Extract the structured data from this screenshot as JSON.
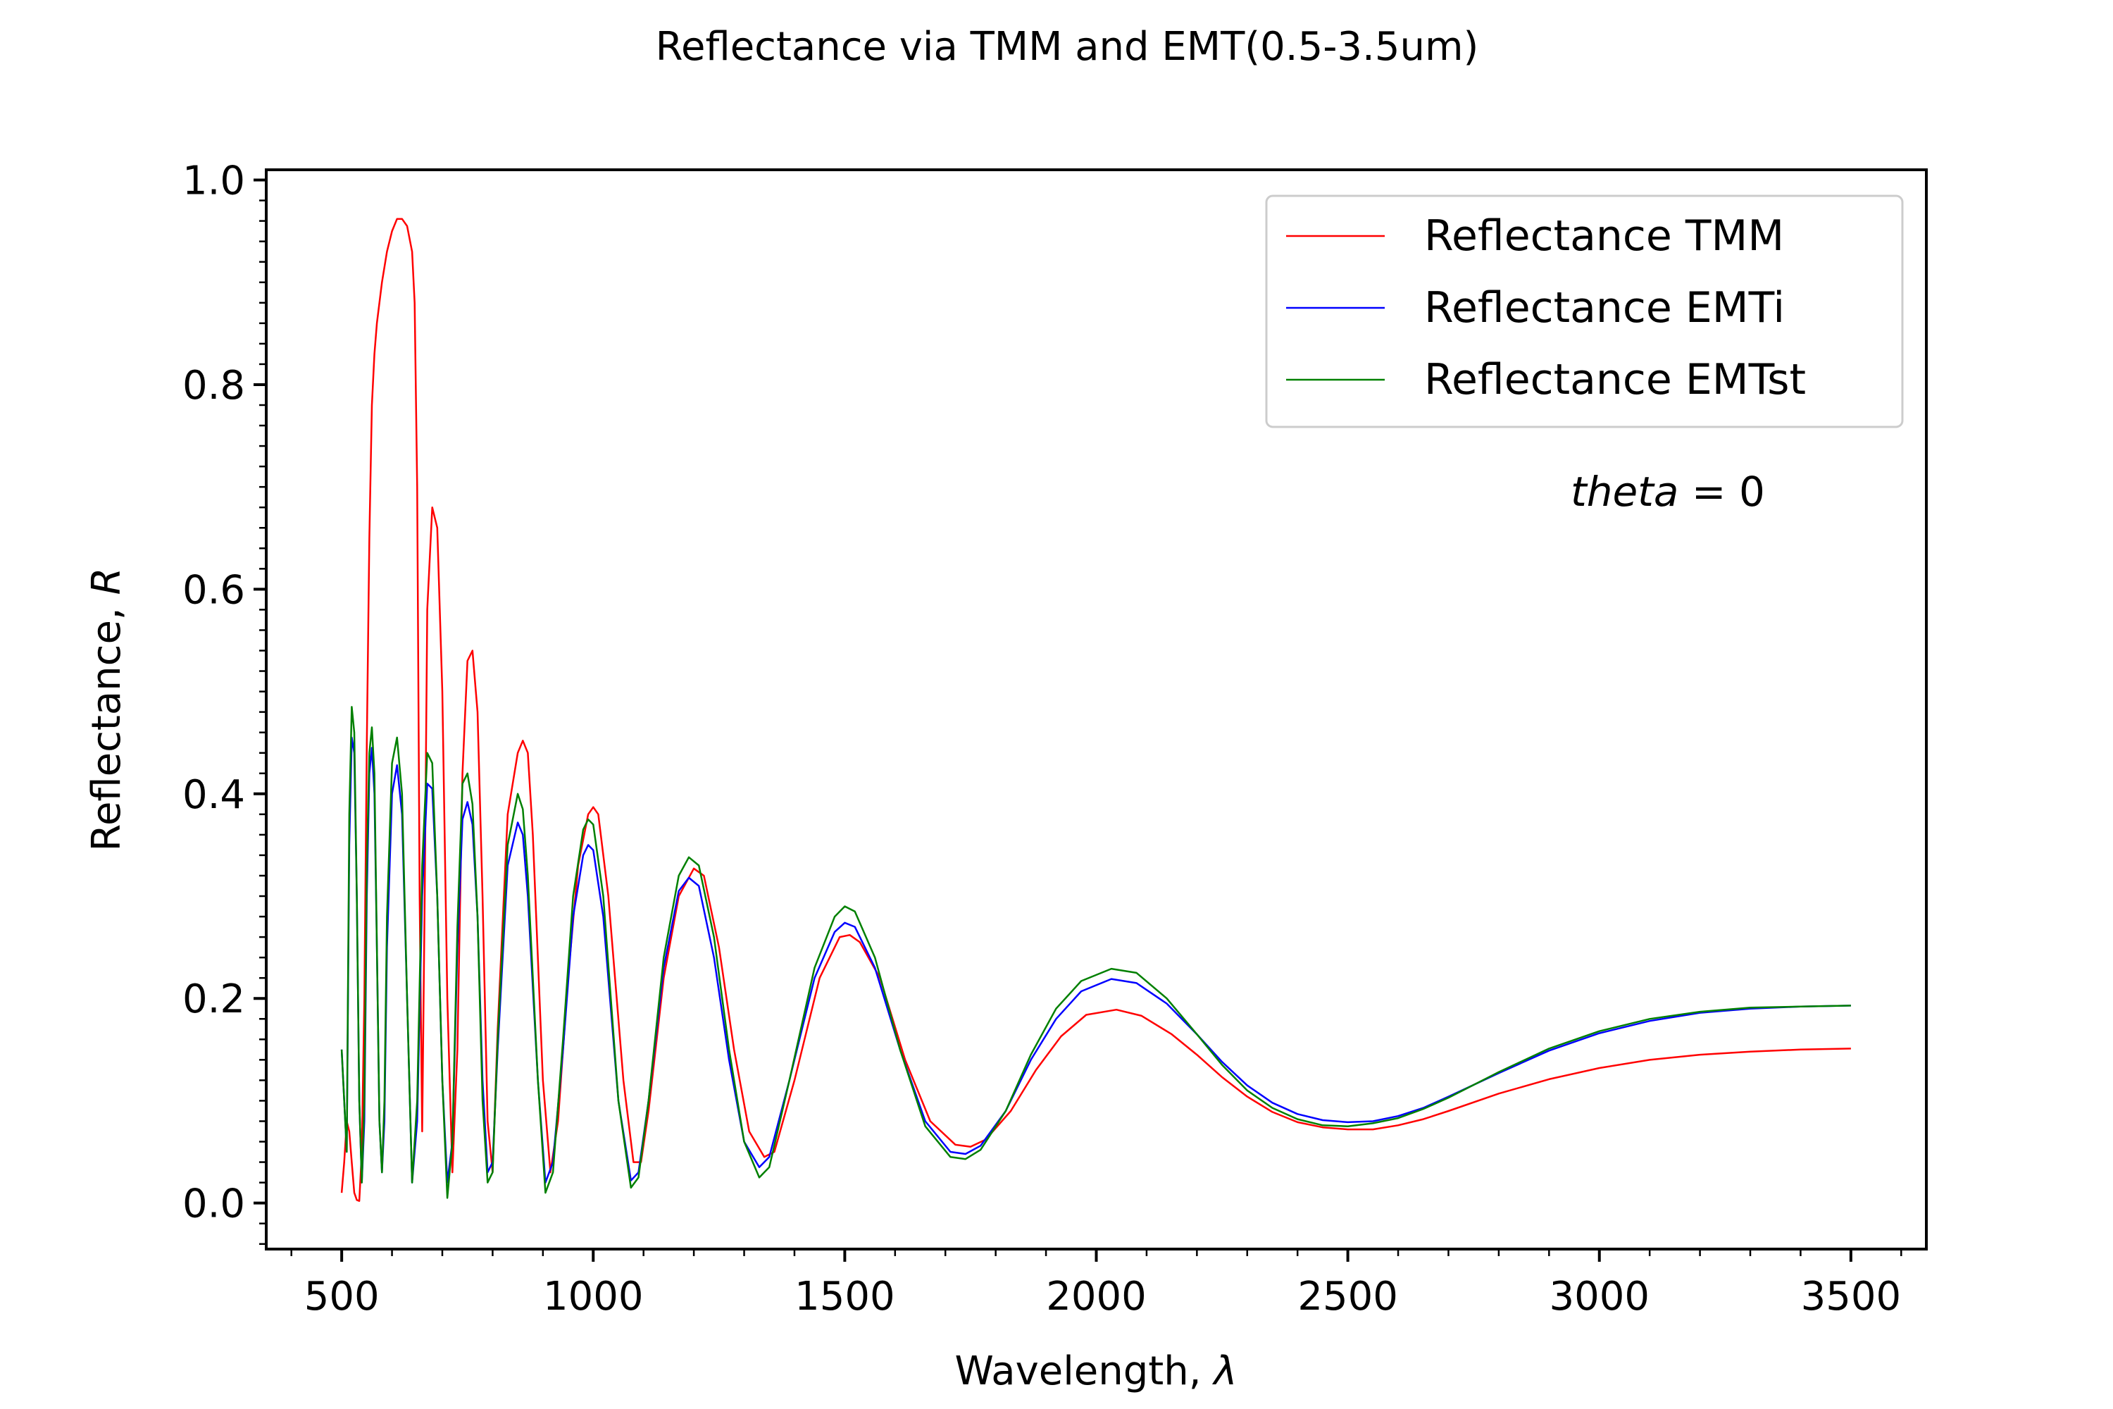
{
  "chart_data": {
    "type": "line",
    "title": "Reflectance via TMM and EMT(0.5-3.5um)",
    "xlabel": "Wavelength, ",
    "xlabel_symbol": "λ",
    "ylabel": "Reflectance, ",
    "ylabel_symbol": "R",
    "xlim": [
      350,
      3650
    ],
    "ylim": [
      -0.045,
      1.01
    ],
    "xticks": [
      500,
      1000,
      1500,
      2000,
      2500,
      3000,
      3500
    ],
    "xtick_labels": [
      "500",
      "1000",
      "1500",
      "2000",
      "2500",
      "3000",
      "3500"
    ],
    "yticks": [
      0.0,
      0.2,
      0.4,
      0.6,
      0.8,
      1.0
    ],
    "ytick_labels": [
      "0.0",
      "0.2",
      "0.4",
      "0.6",
      "0.8",
      "1.0"
    ],
    "minor_ticks": true,
    "grid": false,
    "legend_position": "top-right",
    "annotation": {
      "italic": "theta",
      "rest": " = 0"
    },
    "series": [
      {
        "name": "Reflectance TMM",
        "color": "#ff0000",
        "points": [
          [
            500,
            0.01
          ],
          [
            505,
            0.04
          ],
          [
            510,
            0.08
          ],
          [
            515,
            0.07
          ],
          [
            520,
            0.04
          ],
          [
            525,
            0.01
          ],
          [
            530,
            0.003
          ],
          [
            535,
            0.002
          ],
          [
            540,
            0.05
          ],
          [
            545,
            0.2
          ],
          [
            550,
            0.45
          ],
          [
            555,
            0.65
          ],
          [
            560,
            0.78
          ],
          [
            565,
            0.83
          ],
          [
            570,
            0.86
          ],
          [
            580,
            0.9
          ],
          [
            590,
            0.93
          ],
          [
            600,
            0.95
          ],
          [
            610,
            0.962
          ],
          [
            620,
            0.962
          ],
          [
            630,
            0.955
          ],
          [
            640,
            0.93
          ],
          [
            645,
            0.88
          ],
          [
            650,
            0.7
          ],
          [
            655,
            0.3
          ],
          [
            660,
            0.07
          ],
          [
            665,
            0.3
          ],
          [
            670,
            0.58
          ],
          [
            680,
            0.68
          ],
          [
            690,
            0.66
          ],
          [
            700,
            0.5
          ],
          [
            710,
            0.2
          ],
          [
            720,
            0.03
          ],
          [
            730,
            0.15
          ],
          [
            740,
            0.42
          ],
          [
            750,
            0.53
          ],
          [
            760,
            0.54
          ],
          [
            770,
            0.48
          ],
          [
            780,
            0.3
          ],
          [
            790,
            0.08
          ],
          [
            800,
            0.03
          ],
          [
            810,
            0.17
          ],
          [
            830,
            0.38
          ],
          [
            850,
            0.44
          ],
          [
            860,
            0.452
          ],
          [
            870,
            0.44
          ],
          [
            880,
            0.36
          ],
          [
            900,
            0.12
          ],
          [
            915,
            0.03
          ],
          [
            930,
            0.08
          ],
          [
            950,
            0.22
          ],
          [
            970,
            0.33
          ],
          [
            990,
            0.38
          ],
          [
            1000,
            0.387
          ],
          [
            1010,
            0.38
          ],
          [
            1030,
            0.3
          ],
          [
            1060,
            0.12
          ],
          [
            1080,
            0.04
          ],
          [
            1095,
            0.04
          ],
          [
            1110,
            0.09
          ],
          [
            1140,
            0.22
          ],
          [
            1170,
            0.3
          ],
          [
            1200,
            0.327
          ],
          [
            1220,
            0.32
          ],
          [
            1250,
            0.25
          ],
          [
            1280,
            0.15
          ],
          [
            1310,
            0.07
          ],
          [
            1340,
            0.045
          ],
          [
            1360,
            0.05
          ],
          [
            1400,
            0.12
          ],
          [
            1450,
            0.22
          ],
          [
            1490,
            0.26
          ],
          [
            1510,
            0.262
          ],
          [
            1530,
            0.255
          ],
          [
            1570,
            0.22
          ],
          [
            1620,
            0.14
          ],
          [
            1670,
            0.08
          ],
          [
            1720,
            0.057
          ],
          [
            1750,
            0.055
          ],
          [
            1780,
            0.062
          ],
          [
            1830,
            0.09
          ],
          [
            1880,
            0.13
          ],
          [
            1930,
            0.163
          ],
          [
            1980,
            0.184
          ],
          [
            2040,
            0.189
          ],
          [
            2090,
            0.183
          ],
          [
            2150,
            0.165
          ],
          [
            2200,
            0.145
          ],
          [
            2250,
            0.123
          ],
          [
            2300,
            0.104
          ],
          [
            2350,
            0.089
          ],
          [
            2400,
            0.079
          ],
          [
            2450,
            0.074
          ],
          [
            2500,
            0.072
          ],
          [
            2550,
            0.072
          ],
          [
            2600,
            0.076
          ],
          [
            2650,
            0.082
          ],
          [
            2700,
            0.09
          ],
          [
            2800,
            0.107
          ],
          [
            2900,
            0.121
          ],
          [
            3000,
            0.132
          ],
          [
            3100,
            0.14
          ],
          [
            3200,
            0.145
          ],
          [
            3300,
            0.148
          ],
          [
            3400,
            0.15
          ],
          [
            3500,
            0.151
          ]
        ]
      },
      {
        "name": "Reflectance EMTi",
        "color": "#0000ff",
        "points": [
          [
            500,
            0.15
          ],
          [
            505,
            0.1
          ],
          [
            510,
            0.05
          ],
          [
            515,
            0.35
          ],
          [
            520,
            0.455
          ],
          [
            525,
            0.44
          ],
          [
            530,
            0.3
          ],
          [
            535,
            0.1
          ],
          [
            540,
            0.02
          ],
          [
            545,
            0.08
          ],
          [
            550,
            0.3
          ],
          [
            555,
            0.42
          ],
          [
            560,
            0.445
          ],
          [
            565,
            0.4
          ],
          [
            570,
            0.25
          ],
          [
            575,
            0.08
          ],
          [
            580,
            0.03
          ],
          [
            585,
            0.08
          ],
          [
            590,
            0.25
          ],
          [
            600,
            0.4
          ],
          [
            610,
            0.428
          ],
          [
            620,
            0.38
          ],
          [
            630,
            0.2
          ],
          [
            640,
            0.02
          ],
          [
            650,
            0.08
          ],
          [
            660,
            0.3
          ],
          [
            670,
            0.41
          ],
          [
            680,
            0.405
          ],
          [
            690,
            0.3
          ],
          [
            700,
            0.12
          ],
          [
            710,
            0.02
          ],
          [
            720,
            0.06
          ],
          [
            730,
            0.25
          ],
          [
            740,
            0.375
          ],
          [
            750,
            0.392
          ],
          [
            760,
            0.37
          ],
          [
            770,
            0.28
          ],
          [
            780,
            0.12
          ],
          [
            790,
            0.03
          ],
          [
            800,
            0.04
          ],
          [
            810,
            0.15
          ],
          [
            830,
            0.33
          ],
          [
            850,
            0.372
          ],
          [
            860,
            0.36
          ],
          [
            870,
            0.3
          ],
          [
            890,
            0.12
          ],
          [
            905,
            0.02
          ],
          [
            920,
            0.04
          ],
          [
            940,
            0.15
          ],
          [
            960,
            0.28
          ],
          [
            980,
            0.34
          ],
          [
            990,
            0.35
          ],
          [
            1000,
            0.345
          ],
          [
            1020,
            0.28
          ],
          [
            1050,
            0.1
          ],
          [
            1075,
            0.022
          ],
          [
            1090,
            0.03
          ],
          [
            1110,
            0.1
          ],
          [
            1140,
            0.23
          ],
          [
            1170,
            0.305
          ],
          [
            1190,
            0.318
          ],
          [
            1210,
            0.31
          ],
          [
            1240,
            0.24
          ],
          [
            1270,
            0.14
          ],
          [
            1300,
            0.06
          ],
          [
            1330,
            0.035
          ],
          [
            1350,
            0.045
          ],
          [
            1390,
            0.12
          ],
          [
            1440,
            0.22
          ],
          [
            1480,
            0.265
          ],
          [
            1500,
            0.274
          ],
          [
            1520,
            0.27
          ],
          [
            1560,
            0.23
          ],
          [
            1610,
            0.15
          ],
          [
            1660,
            0.08
          ],
          [
            1710,
            0.05
          ],
          [
            1740,
            0.048
          ],
          [
            1770,
            0.056
          ],
          [
            1820,
            0.09
          ],
          [
            1870,
            0.14
          ],
          [
            1920,
            0.18
          ],
          [
            1970,
            0.207
          ],
          [
            2030,
            0.219
          ],
          [
            2080,
            0.215
          ],
          [
            2140,
            0.195
          ],
          [
            2200,
            0.165
          ],
          [
            2250,
            0.138
          ],
          [
            2300,
            0.115
          ],
          [
            2350,
            0.098
          ],
          [
            2400,
            0.087
          ],
          [
            2450,
            0.081
          ],
          [
            2500,
            0.079
          ],
          [
            2550,
            0.08
          ],
          [
            2600,
            0.085
          ],
          [
            2650,
            0.093
          ],
          [
            2700,
            0.104
          ],
          [
            2800,
            0.127
          ],
          [
            2900,
            0.149
          ],
          [
            3000,
            0.166
          ],
          [
            3100,
            0.178
          ],
          [
            3200,
            0.186
          ],
          [
            3300,
            0.19
          ],
          [
            3400,
            0.192
          ],
          [
            3500,
            0.193
          ]
        ]
      },
      {
        "name": "Reflectance EMTst",
        "color": "#008000",
        "points": [
          [
            500,
            0.15
          ],
          [
            505,
            0.1
          ],
          [
            510,
            0.05
          ],
          [
            515,
            0.38
          ],
          [
            520,
            0.485
          ],
          [
            525,
            0.46
          ],
          [
            530,
            0.3
          ],
          [
            535,
            0.1
          ],
          [
            540,
            0.02
          ],
          [
            545,
            0.1
          ],
          [
            550,
            0.33
          ],
          [
            555,
            0.44
          ],
          [
            560,
            0.465
          ],
          [
            565,
            0.42
          ],
          [
            570,
            0.25
          ],
          [
            575,
            0.08
          ],
          [
            580,
            0.03
          ],
          [
            585,
            0.1
          ],
          [
            590,
            0.28
          ],
          [
            600,
            0.43
          ],
          [
            610,
            0.455
          ],
          [
            620,
            0.4
          ],
          [
            630,
            0.2
          ],
          [
            640,
            0.02
          ],
          [
            650,
            0.1
          ],
          [
            660,
            0.33
          ],
          [
            670,
            0.44
          ],
          [
            680,
            0.43
          ],
          [
            690,
            0.3
          ],
          [
            700,
            0.12
          ],
          [
            710,
            0.005
          ],
          [
            720,
            0.06
          ],
          [
            730,
            0.27
          ],
          [
            740,
            0.41
          ],
          [
            750,
            0.42
          ],
          [
            760,
            0.39
          ],
          [
            770,
            0.28
          ],
          [
            780,
            0.1
          ],
          [
            790,
            0.02
          ],
          [
            800,
            0.03
          ],
          [
            810,
            0.16
          ],
          [
            830,
            0.35
          ],
          [
            850,
            0.4
          ],
          [
            860,
            0.385
          ],
          [
            870,
            0.32
          ],
          [
            890,
            0.12
          ],
          [
            905,
            0.01
          ],
          [
            920,
            0.03
          ],
          [
            940,
            0.16
          ],
          [
            960,
            0.3
          ],
          [
            980,
            0.365
          ],
          [
            990,
            0.375
          ],
          [
            1000,
            0.37
          ],
          [
            1020,
            0.3
          ],
          [
            1050,
            0.1
          ],
          [
            1075,
            0.015
          ],
          [
            1090,
            0.025
          ],
          [
            1110,
            0.1
          ],
          [
            1140,
            0.24
          ],
          [
            1170,
            0.32
          ],
          [
            1190,
            0.338
          ],
          [
            1210,
            0.33
          ],
          [
            1240,
            0.26
          ],
          [
            1270,
            0.15
          ],
          [
            1300,
            0.06
          ],
          [
            1330,
            0.025
          ],
          [
            1350,
            0.035
          ],
          [
            1390,
            0.12
          ],
          [
            1440,
            0.23
          ],
          [
            1480,
            0.28
          ],
          [
            1500,
            0.29
          ],
          [
            1520,
            0.285
          ],
          [
            1560,
            0.24
          ],
          [
            1610,
            0.15
          ],
          [
            1660,
            0.075
          ],
          [
            1710,
            0.045
          ],
          [
            1740,
            0.043
          ],
          [
            1770,
            0.052
          ],
          [
            1820,
            0.09
          ],
          [
            1870,
            0.145
          ],
          [
            1920,
            0.19
          ],
          [
            1970,
            0.217
          ],
          [
            2030,
            0.229
          ],
          [
            2080,
            0.225
          ],
          [
            2140,
            0.2
          ],
          [
            2200,
            0.165
          ],
          [
            2250,
            0.135
          ],
          [
            2300,
            0.11
          ],
          [
            2350,
            0.093
          ],
          [
            2400,
            0.082
          ],
          [
            2450,
            0.076
          ],
          [
            2500,
            0.075
          ],
          [
            2550,
            0.078
          ],
          [
            2600,
            0.083
          ],
          [
            2650,
            0.092
          ],
          [
            2700,
            0.103
          ],
          [
            2800,
            0.128
          ],
          [
            2900,
            0.151
          ],
          [
            3000,
            0.168
          ],
          [
            3100,
            0.18
          ],
          [
            3200,
            0.187
          ],
          [
            3300,
            0.191
          ],
          [
            3400,
            0.192
          ],
          [
            3500,
            0.193
          ]
        ]
      }
    ]
  }
}
